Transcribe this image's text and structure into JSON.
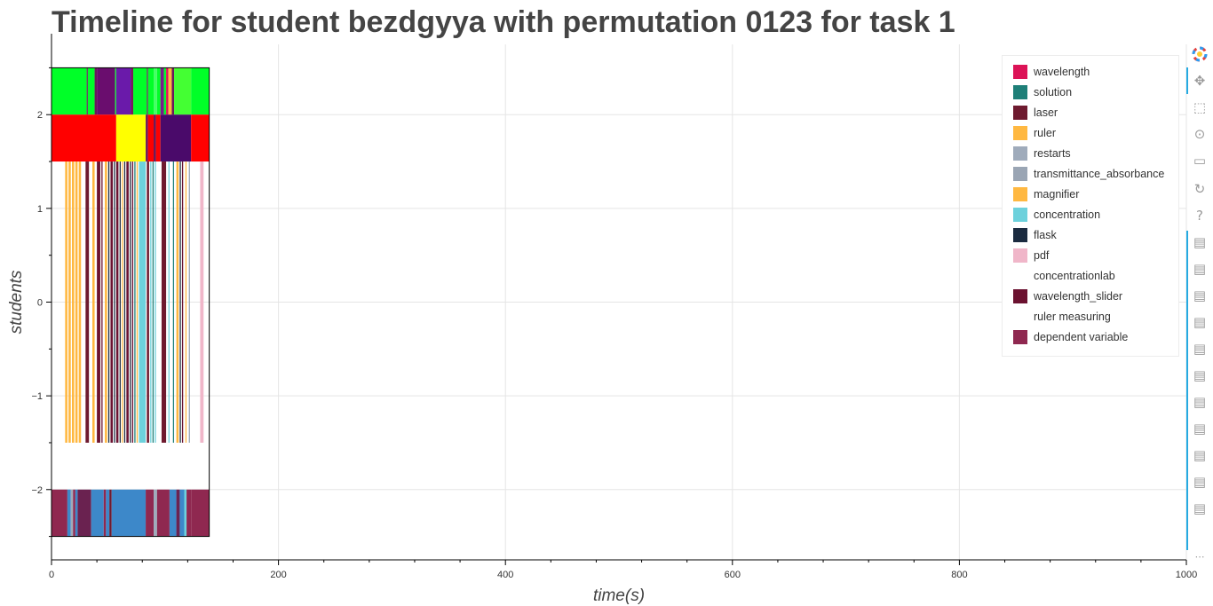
{
  "chart_data": {
    "type": "bar",
    "title": "Timeline for student bezdgyya with permutation 0123 for task 1",
    "xlabel": "time(s)",
    "ylabel": "students",
    "xlim": [
      0,
      1000
    ],
    "ylim": [
      -2.75,
      2.75
    ],
    "x_ticks": [
      0,
      200,
      400,
      600,
      800,
      1000
    ],
    "y_ticks": [
      -2,
      -1,
      0,
      1,
      2
    ],
    "x_tick_labels": [
      "0",
      "200",
      "400",
      "600",
      "800",
      "1000"
    ],
    "y_tick_labels": [
      "−2",
      "−1",
      "0",
      "1",
      "2"
    ],
    "grid": true,
    "legend_position": "top-right",
    "legend": [
      {
        "label": "wavelength",
        "color": "#dc1357"
      },
      {
        "label": "solution",
        "color": "#1e7f78"
      },
      {
        "label": "laser",
        "color": "#6e1a2f"
      },
      {
        "label": "ruler",
        "color": "#ffb841"
      },
      {
        "label": "restarts",
        "color": "#9fabbb"
      },
      {
        "label": "transmittance_absorbance",
        "color": "#9aa5b4"
      },
      {
        "label": "magnifier",
        "color": "#ffb841"
      },
      {
        "label": "concentration",
        "color": "#6dd1dc"
      },
      {
        "label": "flask",
        "color": "#1b2b40"
      },
      {
        "label": "pdf",
        "color": "#f0b6c9"
      },
      {
        "label": "concentrationlab",
        "color": ""
      },
      {
        "label": "wavelength_slider",
        "color": "#6b1230"
      },
      {
        "label": "ruler measuring",
        "color": ""
      },
      {
        "label": "dependent variable",
        "color": "#8f2850"
      }
    ],
    "rows": [
      {
        "y_range": [
          2.0,
          2.5
        ],
        "segments": [
          {
            "start": 0,
            "end": 31,
            "color": "#00ff28"
          },
          {
            "start": 31,
            "end": 32,
            "color": "#6a1a5a"
          },
          {
            "start": 32,
            "end": 38,
            "color": "#00ff28"
          },
          {
            "start": 38,
            "end": 40,
            "color": "#6a1a5a"
          },
          {
            "start": 40,
            "end": 56,
            "color": "#6a0d6e"
          },
          {
            "start": 56,
            "end": 57,
            "color": "#00ff28"
          },
          {
            "start": 57,
            "end": 70,
            "color": "#6a1aaa"
          },
          {
            "start": 70,
            "end": 72,
            "color": "#7a1a5a"
          },
          {
            "start": 72,
            "end": 84,
            "color": "#00ff28"
          },
          {
            "start": 84,
            "end": 85,
            "color": "#6a1a5a"
          },
          {
            "start": 85,
            "end": 90,
            "color": "#00ff28"
          },
          {
            "start": 90,
            "end": 93,
            "color": "#44ff66"
          },
          {
            "start": 93,
            "end": 96,
            "color": "#00ff28"
          },
          {
            "start": 96,
            "end": 99,
            "color": "#7a1a8a"
          },
          {
            "start": 99,
            "end": 101,
            "color": "#00ff28"
          },
          {
            "start": 101,
            "end": 103,
            "color": "#dc1357"
          },
          {
            "start": 103,
            "end": 106,
            "color": "#ffb841"
          },
          {
            "start": 106,
            "end": 108,
            "color": "#6a1a5a"
          },
          {
            "start": 108,
            "end": 123,
            "color": "#44ff33"
          },
          {
            "start": 123,
            "end": 139,
            "color": "#00ff28"
          }
        ]
      },
      {
        "y_range": [
          1.5,
          2.0
        ],
        "segments": [
          {
            "start": 0,
            "end": 57,
            "color": "#ff0000"
          },
          {
            "start": 57,
            "end": 83,
            "color": "#ffff00"
          },
          {
            "start": 83,
            "end": 85,
            "color": "#6a1a5a"
          },
          {
            "start": 85,
            "end": 90,
            "color": "#ff0000"
          },
          {
            "start": 90,
            "end": 92,
            "color": "#6a1a5a"
          },
          {
            "start": 92,
            "end": 96,
            "color": "#ff0000"
          },
          {
            "start": 96,
            "end": 123,
            "color": "#4a0a6a"
          },
          {
            "start": 123,
            "end": 139,
            "color": "#ff0000"
          }
        ]
      },
      {
        "y_range": [
          -1.5,
          1.5
        ],
        "segments": [
          {
            "start": 12,
            "end": 14,
            "color": "#ffb841"
          },
          {
            "start": 15,
            "end": 17,
            "color": "#ffb841"
          },
          {
            "start": 18,
            "end": 20,
            "color": "#ffb841"
          },
          {
            "start": 21,
            "end": 23,
            "color": "#ffb841"
          },
          {
            "start": 24,
            "end": 26,
            "color": "#ffb841"
          },
          {
            "start": 30,
            "end": 33,
            "color": "#6e1a2f"
          },
          {
            "start": 36,
            "end": 38,
            "color": "#ffb841"
          },
          {
            "start": 40,
            "end": 43,
            "color": "#6b1230"
          },
          {
            "start": 44,
            "end": 45,
            "color": "#6b1230"
          },
          {
            "start": 47,
            "end": 49,
            "color": "#ffb841"
          },
          {
            "start": 50,
            "end": 51,
            "color": "#1b2b40"
          },
          {
            "start": 52,
            "end": 54,
            "color": "#6b1230"
          },
          {
            "start": 55,
            "end": 56,
            "color": "#1b2b40"
          },
          {
            "start": 57,
            "end": 59,
            "color": "#6b1230"
          },
          {
            "start": 60,
            "end": 61,
            "color": "#1b2b40"
          },
          {
            "start": 62,
            "end": 63,
            "color": "#ffb841"
          },
          {
            "start": 64,
            "end": 65,
            "color": "#1b2b40"
          },
          {
            "start": 66,
            "end": 68,
            "color": "#6b1230"
          },
          {
            "start": 69,
            "end": 70,
            "color": "#1b2b40"
          },
          {
            "start": 71,
            "end": 72,
            "color": "#6b1230"
          },
          {
            "start": 73,
            "end": 74,
            "color": "#1e7f78"
          },
          {
            "start": 75,
            "end": 76,
            "color": "#ffb841"
          },
          {
            "start": 77,
            "end": 83,
            "color": "#6dd1dc"
          },
          {
            "start": 84,
            "end": 86,
            "color": "#6e1a2f"
          },
          {
            "start": 87,
            "end": 88,
            "color": "#6dd1dc"
          },
          {
            "start": 89,
            "end": 90,
            "color": "#1e7f78"
          },
          {
            "start": 91,
            "end": 92,
            "color": "#6dd1dc"
          },
          {
            "start": 97,
            "end": 101,
            "color": "#6e1a2f"
          },
          {
            "start": 103,
            "end": 104,
            "color": "#6dd1dc"
          },
          {
            "start": 107,
            "end": 108,
            "color": "#1e7f78"
          },
          {
            "start": 110,
            "end": 112,
            "color": "#ffb841"
          },
          {
            "start": 113,
            "end": 114,
            "color": "#1b2b40"
          },
          {
            "start": 115,
            "end": 116,
            "color": "#6b1230"
          },
          {
            "start": 118,
            "end": 119,
            "color": "#ffb841"
          },
          {
            "start": 121,
            "end": 122,
            "color": "#9aa5b4"
          },
          {
            "start": 131,
            "end": 134,
            "color": "#f0b6c9"
          }
        ]
      },
      {
        "y_range": [
          -2.5,
          -2.0
        ],
        "segments": [
          {
            "start": 0,
            "end": 14,
            "color": "#8f2850"
          },
          {
            "start": 14,
            "end": 17,
            "color": "#3d88c9"
          },
          {
            "start": 17,
            "end": 19,
            "color": "#9fabbb"
          },
          {
            "start": 19,
            "end": 21,
            "color": "#8f2850"
          },
          {
            "start": 21,
            "end": 23,
            "color": "#3d88c9"
          },
          {
            "start": 23,
            "end": 35,
            "color": "#6a2250"
          },
          {
            "start": 35,
            "end": 46,
            "color": "#3d88c9"
          },
          {
            "start": 46,
            "end": 48,
            "color": "#8f2850"
          },
          {
            "start": 48,
            "end": 51,
            "color": "#3d88c9"
          },
          {
            "start": 51,
            "end": 53,
            "color": "#6e1a2f"
          },
          {
            "start": 53,
            "end": 83,
            "color": "#3d88c9"
          },
          {
            "start": 83,
            "end": 90,
            "color": "#8f2850"
          },
          {
            "start": 90,
            "end": 93,
            "color": "#9fabbb"
          },
          {
            "start": 93,
            "end": 104,
            "color": "#8f2850"
          },
          {
            "start": 104,
            "end": 110,
            "color": "#3d88c9"
          },
          {
            "start": 110,
            "end": 113,
            "color": "#6a2250"
          },
          {
            "start": 113,
            "end": 117,
            "color": "#3d88c9"
          },
          {
            "start": 117,
            "end": 119,
            "color": "#6dd1dc"
          },
          {
            "start": 119,
            "end": 123,
            "color": "#8f2850"
          },
          {
            "start": 123,
            "end": 139,
            "color": "#8f2850"
          }
        ]
      }
    ],
    "outline": {
      "x_range": [
        0,
        139
      ],
      "y_range": [
        -2.5,
        2.5
      ],
      "color": "#000000"
    }
  },
  "toolbar": {
    "icons": [
      "bokeh-logo-icon",
      "pan-icon",
      "box-zoom-icon",
      "wheel-zoom-icon",
      "save-icon",
      "reset-icon",
      "help-icon",
      "hover-icon",
      "hover-icon",
      "hover-icon",
      "hover-icon",
      "hover-icon",
      "hover-icon",
      "hover-icon",
      "hover-icon",
      "hover-icon",
      "hover-icon",
      "hover-icon",
      "more-icon"
    ],
    "more_label": "⋯"
  }
}
